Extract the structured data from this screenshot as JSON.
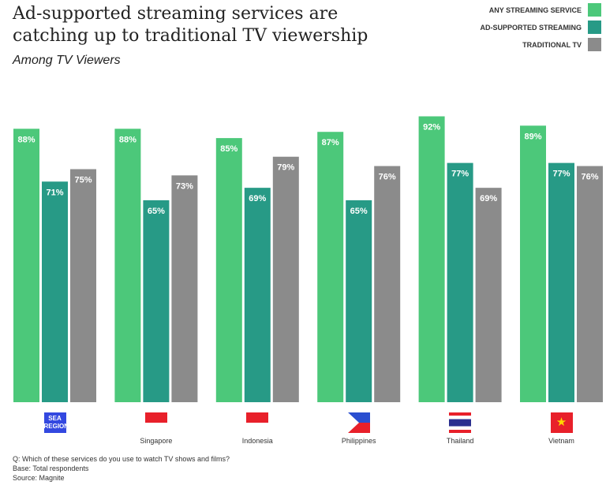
{
  "chart_data": {
    "type": "bar",
    "title": "Ad-supported streaming services are catching up to traditional TV viewership",
    "subtitle": "Among TV Viewers",
    "categories": [
      "SEA REGION",
      "Singapore",
      "Indonesia",
      "Philippines",
      "Thailand",
      "Vietnam"
    ],
    "series": [
      {
        "name": "ANY STREAMING SERVICE",
        "color": "#4cc87a",
        "values": [
          88,
          88,
          85,
          87,
          92,
          89
        ]
      },
      {
        "name": "AD-SUPPORTED STREAMING",
        "color": "#279a86",
        "values": [
          71,
          65,
          69,
          65,
          77,
          77
        ]
      },
      {
        "name": "TRADITIONAL TV",
        "color": "#8b8b8b",
        "values": [
          75,
          73,
          79,
          76,
          69,
          76
        ]
      }
    ],
    "ylim": [
      0,
      100
    ],
    "legend": "top-right",
    "value_suffix": "%"
  },
  "footer": [
    "Q: Which of these services do you use to watch TV shows and films?",
    "Base: Total respondents",
    "Source: Magnite"
  ]
}
